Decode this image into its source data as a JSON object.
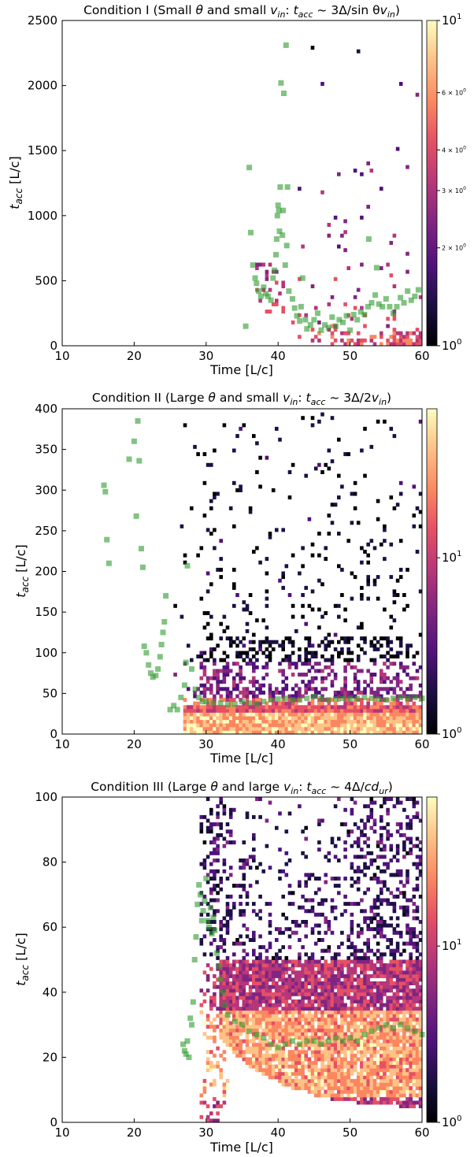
{
  "chart_data": [
    {
      "type": "heatmap",
      "title": "Condition I (Small θ and small v_in:  t_acc ~ 3Δ/sin θ v_in)",
      "title_parts": {
        "prefix": "Condition I (Small ",
        "theta": "θ",
        "mid1": " and small ",
        "v": "v",
        "v_sub": "in",
        "colon": ":  ",
        "t": "t",
        "t_sub": "acc",
        "rest": " ~ 3Δ/sin θ",
        "v2": "v",
        "v2_sub": "in",
        "close": ")"
      },
      "xlabel": "Time [L/c]",
      "ylabel": "t_acc [L/c]",
      "ylabel_parts": {
        "t": "t",
        "sub": "acc",
        "unit": " [L/c]"
      },
      "xlim": [
        10,
        60
      ],
      "ylim": [
        0,
        2500
      ],
      "xticks": [
        10,
        20,
        30,
        40,
        50,
        60
      ],
      "yticks": [
        0,
        500,
        1000,
        1500,
        2000,
        2500
      ],
      "colorbar": {
        "scale": "log",
        "range": [
          1,
          10
        ],
        "ticks": [
          {
            "base": "10",
            "exp": "0",
            "value": 1
          },
          {
            "base": "10",
            "exp": "1",
            "value": 10
          }
        ],
        "minor_ticks": [
          {
            "base": "2 × 10",
            "exp": "0",
            "value": 2
          },
          {
            "base": "3 × 10",
            "exp": "0",
            "value": 3
          },
          {
            "base": "4 × 10",
            "exp": "0",
            "value": 4
          },
          {
            "base": "6 × 10",
            "exp": "0",
            "value": 6
          }
        ],
        "colormap": "magma"
      },
      "green_markers": [
        [
          35.5,
          150
        ],
        [
          36,
          1370
        ],
        [
          36.2,
          870
        ],
        [
          36.5,
          620
        ],
        [
          36.8,
          520
        ],
        [
          37,
          480
        ],
        [
          37.3,
          420
        ],
        [
          37.6,
          380
        ],
        [
          38,
          450
        ],
        [
          38.3,
          400
        ],
        [
          38.6,
          380
        ],
        [
          39,
          350
        ],
        [
          39.3,
          520
        ],
        [
          39.5,
          580
        ],
        [
          39.7,
          700
        ],
        [
          39.8,
          820
        ],
        [
          39.9,
          1000
        ],
        [
          40,
          1080
        ],
        [
          40.1,
          1040
        ],
        [
          40.2,
          880
        ],
        [
          40.3,
          1220
        ],
        [
          40.4,
          2020
        ],
        [
          40.6,
          850
        ],
        [
          40.7,
          1040
        ],
        [
          40.8,
          1940
        ],
        [
          41,
          620
        ],
        [
          41.1,
          2310
        ],
        [
          41.2,
          770
        ],
        [
          41.3,
          1220
        ],
        [
          41.5,
          420
        ],
        [
          42,
          360
        ],
        [
          42.3,
          290
        ],
        [
          42.6,
          230
        ],
        [
          43,
          190
        ],
        [
          43.2,
          300
        ],
        [
          43.4,
          520
        ],
        [
          43.8,
          200
        ],
        [
          44,
          130
        ],
        [
          44.5,
          160
        ],
        [
          45,
          200
        ],
        [
          45.5,
          250
        ],
        [
          46,
          120
        ],
        [
          46.5,
          160
        ],
        [
          47,
          140
        ],
        [
          47.5,
          220
        ],
        [
          48,
          150
        ],
        [
          48.5,
          200
        ],
        [
          49,
          180
        ],
        [
          49.5,
          230
        ],
        [
          50,
          120
        ],
        [
          50.5,
          240
        ],
        [
          51,
          200
        ],
        [
          51.5,
          260
        ],
        [
          52,
          240
        ],
        [
          52.5,
          300
        ],
        [
          52.6,
          820
        ],
        [
          53,
          330
        ],
        [
          53.5,
          390
        ],
        [
          53.7,
          600
        ],
        [
          54,
          320
        ],
        [
          54.5,
          300
        ],
        [
          55,
          360
        ],
        [
          55.5,
          300
        ],
        [
          56,
          250
        ],
        [
          56.5,
          300
        ],
        [
          57,
          370
        ],
        [
          57.5,
          330
        ],
        [
          58,
          420
        ],
        [
          58.5,
          350
        ],
        [
          59,
          380
        ],
        [
          59.5,
          430
        ]
      ]
    },
    {
      "type": "heatmap",
      "title": "Condition II (Large θ and small v_in:  t_acc ~ 3Δ/2v_in)",
      "title_parts": {
        "prefix": "Condition II (Large ",
        "theta": "θ",
        "mid1": " and small ",
        "v": "v",
        "v_sub": "in",
        "colon": ":  ",
        "t": "t",
        "t_sub": "acc",
        "rest": " ~ 3Δ/2",
        "v2": "v",
        "v2_sub": "in",
        "close": ")"
      },
      "xlabel": "Time [L/c]",
      "ylabel": "t_acc [L/c]",
      "ylabel_parts": {
        "t": "t",
        "sub": "acc",
        "unit": " [L/c]"
      },
      "xlim": [
        10,
        60
      ],
      "ylim": [
        0,
        400
      ],
      "xticks": [
        10,
        20,
        30,
        40,
        50,
        60
      ],
      "yticks": [
        0,
        50,
        100,
        150,
        200,
        250,
        300,
        350,
        400
      ],
      "colorbar": {
        "scale": "log",
        "range": [
          1,
          70
        ],
        "ticks": [
          {
            "base": "10",
            "exp": "0",
            "value": 1
          },
          {
            "base": "10",
            "exp": "1",
            "value": 10
          }
        ],
        "colormap": "magma"
      },
      "green_markers": [
        [
          15.8,
          306
        ],
        [
          16,
          298
        ],
        [
          16.2,
          239
        ],
        [
          16.5,
          210
        ],
        [
          19.3,
          338
        ],
        [
          20,
          360
        ],
        [
          20.3,
          268
        ],
        [
          20.5,
          385
        ],
        [
          20.7,
          336
        ],
        [
          21,
          228
        ],
        [
          21.2,
          205
        ],
        [
          21.4,
          108
        ],
        [
          21.7,
          100
        ],
        [
          22,
          85
        ],
        [
          22.3,
          75
        ],
        [
          22.6,
          70
        ],
        [
          23,
          72
        ],
        [
          23.3,
          80
        ],
        [
          23.6,
          95
        ],
        [
          23.8,
          110
        ],
        [
          24,
          125
        ],
        [
          24.2,
          138
        ],
        [
          24.4,
          170
        ],
        [
          25,
          30
        ],
        [
          25.5,
          35
        ],
        [
          26,
          30
        ],
        [
          26.5,
          45
        ],
        [
          27,
          60
        ],
        [
          27.2,
          88
        ],
        [
          27.4,
          207
        ],
        [
          28,
          80
        ],
        [
          28.5,
          55
        ],
        [
          29,
          45
        ],
        [
          29.5,
          40
        ],
        [
          30,
          40
        ],
        [
          31,
          38
        ],
        [
          32,
          38
        ],
        [
          33,
          36
        ],
        [
          34,
          37
        ],
        [
          35,
          40
        ],
        [
          36,
          38
        ],
        [
          37,
          37
        ],
        [
          38,
          40
        ],
        [
          39,
          42
        ],
        [
          40,
          43
        ],
        [
          41,
          44
        ],
        [
          42,
          42
        ],
        [
          43,
          42
        ],
        [
          44,
          44
        ],
        [
          45,
          46
        ],
        [
          46,
          44
        ],
        [
          47,
          42
        ],
        [
          48,
          43
        ],
        [
          49,
          44
        ],
        [
          50,
          43
        ],
        [
          51,
          44
        ],
        [
          52,
          45
        ],
        [
          53,
          44
        ],
        [
          54,
          43
        ],
        [
          55,
          42
        ],
        [
          56,
          44
        ],
        [
          57,
          45
        ],
        [
          58,
          44
        ],
        [
          59,
          45
        ],
        [
          60,
          44
        ]
      ]
    },
    {
      "type": "heatmap",
      "title": "Condition III (Large θ and large v_in:  t_acc ~ 4Δ/cd_ur)",
      "title_parts": {
        "prefix": "Condition III (Large ",
        "theta": "θ",
        "mid1": " and large ",
        "v": "v",
        "v_sub": "in",
        "colon": ":  ",
        "t": "t",
        "t_sub": "acc",
        "rest": " ~ 4Δ/",
        "v2": "cd",
        "v2_sub": "ur",
        "close": ")"
      },
      "xlabel": "Time [L/c]",
      "ylabel": "t_acc [L/c]",
      "ylabel_parts": {
        "t": "t",
        "sub": "acc",
        "unit": " [L/c]"
      },
      "xlim": [
        10,
        60
      ],
      "ylim": [
        0,
        100
      ],
      "xticks": [
        10,
        20,
        30,
        40,
        50,
        60
      ],
      "yticks": [
        0,
        20,
        40,
        60,
        80,
        100
      ],
      "colorbar": {
        "scale": "log",
        "range": [
          1,
          70
        ],
        "ticks": [
          {
            "base": "10",
            "exp": "0",
            "value": 1
          },
          {
            "base": "10",
            "exp": "1",
            "value": 10
          }
        ],
        "colormap": "magma"
      },
      "green_markers": [
        [
          26.8,
          24
        ],
        [
          27,
          22
        ],
        [
          27.2,
          21
        ],
        [
          27.4,
          25
        ],
        [
          27.6,
          20
        ],
        [
          27.8,
          32
        ],
        [
          28,
          30
        ],
        [
          28.2,
          37
        ],
        [
          28.4,
          50
        ],
        [
          28.6,
          57
        ],
        [
          28.8,
          67
        ],
        [
          29,
          73
        ],
        [
          29.2,
          70
        ],
        [
          29.4,
          62
        ],
        [
          29.6,
          65
        ],
        [
          29.8,
          68
        ],
        [
          30,
          75
        ],
        [
          30.2,
          62
        ],
        [
          30.4,
          60
        ],
        [
          30.6,
          66
        ],
        [
          30.8,
          58
        ],
        [
          31,
          63
        ],
        [
          31.2,
          59
        ],
        [
          31.5,
          52
        ],
        [
          31.8,
          48
        ],
        [
          32,
          44
        ],
        [
          32.3,
          40
        ],
        [
          32.6,
          36
        ],
        [
          33,
          33
        ],
        [
          34,
          31
        ],
        [
          35,
          30
        ],
        [
          36,
          28
        ],
        [
          37,
          27
        ],
        [
          38,
          26
        ],
        [
          39,
          24
        ],
        [
          40,
          23
        ],
        [
          41,
          24
        ],
        [
          42,
          25
        ],
        [
          43,
          24
        ],
        [
          44,
          25
        ],
        [
          45,
          25
        ],
        [
          46,
          24
        ],
        [
          47,
          25
        ],
        [
          48,
          26
        ],
        [
          49,
          25
        ],
        [
          50,
          26
        ],
        [
          51,
          25
        ],
        [
          52,
          27
        ],
        [
          53,
          28
        ],
        [
          54,
          29
        ],
        [
          55,
          30
        ],
        [
          56,
          29
        ],
        [
          57,
          30
        ],
        [
          58,
          29
        ],
        [
          59,
          28
        ],
        [
          60,
          27
        ]
      ]
    }
  ]
}
